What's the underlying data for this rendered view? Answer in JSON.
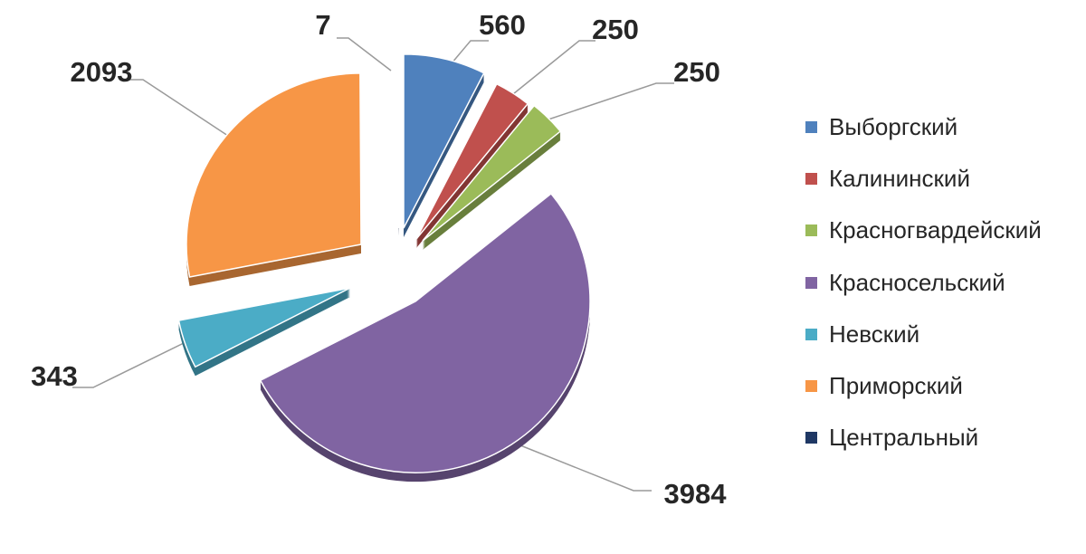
{
  "chart_data": {
    "type": "pie",
    "title": "",
    "legend_position": "right",
    "slices": [
      {
        "name": "Выборгский",
        "value": 560,
        "label": "560",
        "color": "#4F81BD"
      },
      {
        "name": "Калининский",
        "value": 250,
        "label": "250",
        "color": "#C0504D"
      },
      {
        "name": "Красногвардейский",
        "value": 250,
        "label": "250",
        "color": "#9BBB59"
      },
      {
        "name": "Красносельский",
        "value": 3984,
        "label": "3984",
        "color": "#8064A2"
      },
      {
        "name": "Невский",
        "value": 343,
        "label": "343",
        "color": "#4BACC6"
      },
      {
        "name": "Приморский",
        "value": 2093,
        "label": "2093",
        "color": "#F79646"
      },
      {
        "name": "Центральный",
        "value": 7,
        "label": "7",
        "color": "#1F3864"
      }
    ]
  }
}
